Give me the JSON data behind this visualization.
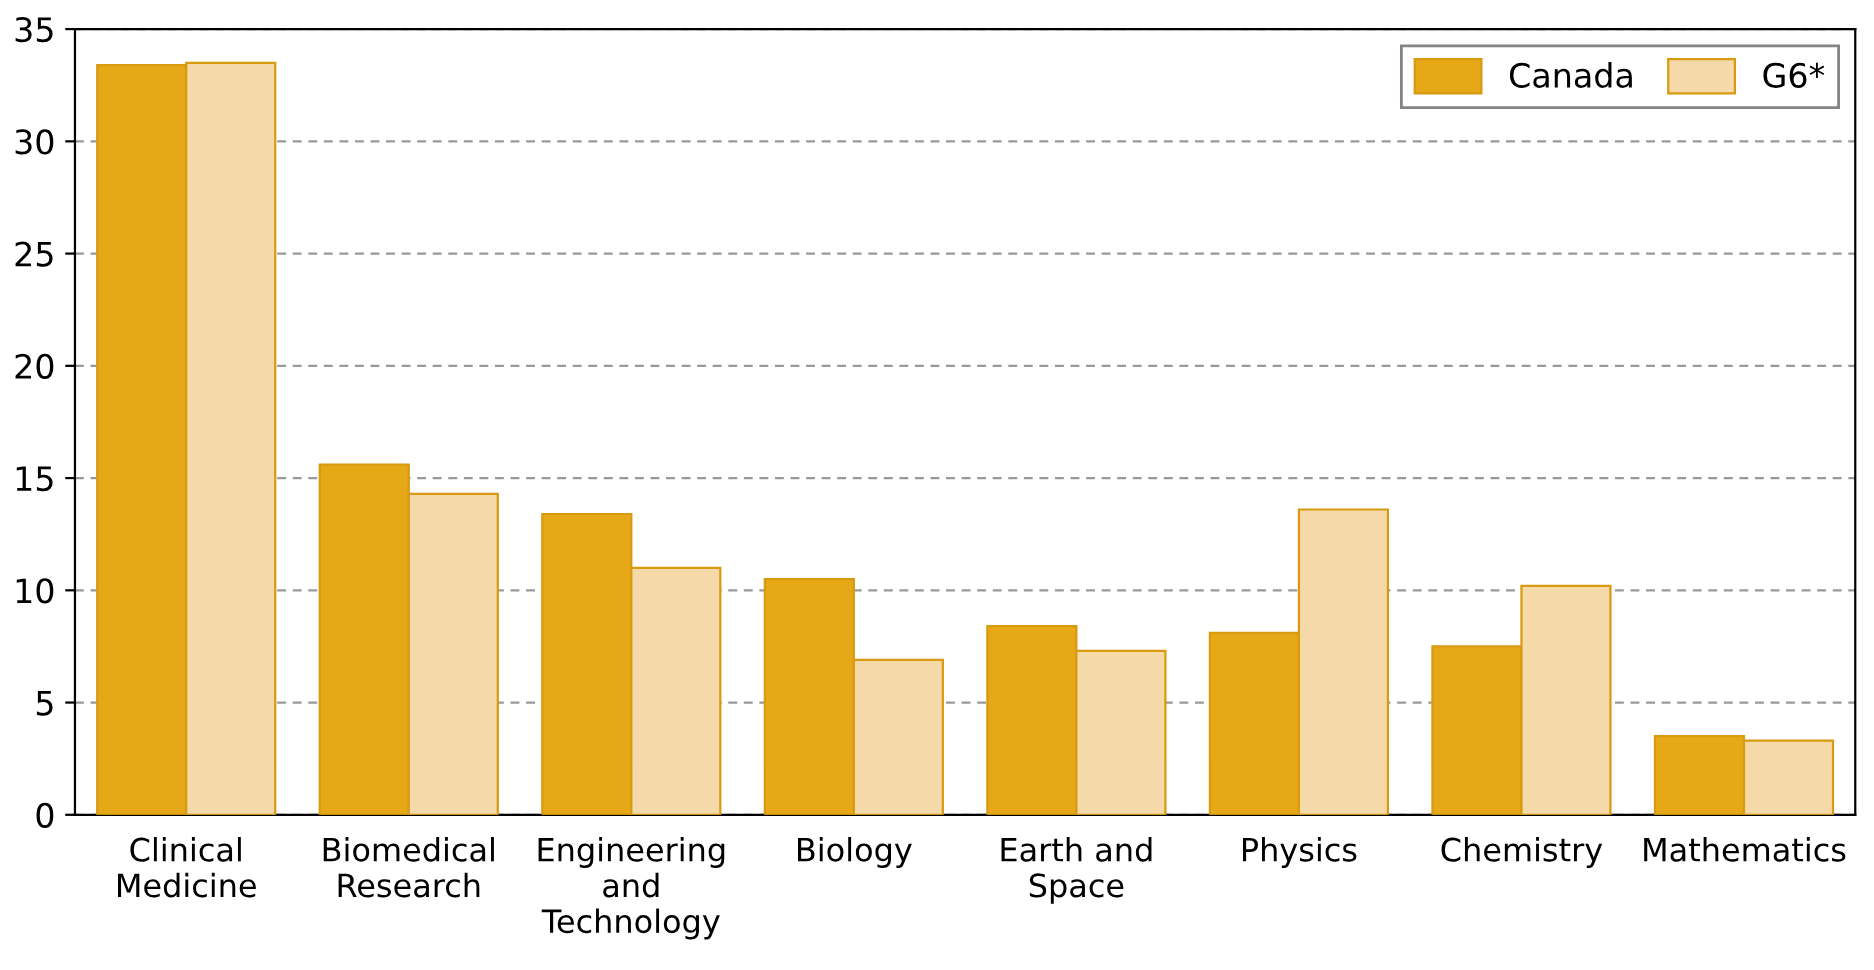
{
  "chart_data": {
    "type": "bar",
    "categories": [
      "Clinical\nMedicine",
      "Biomedical\nResearch",
      "Engineering\nand\nTechnology",
      "Biology",
      "Earth and\nSpace",
      "Physics",
      "Chemistry",
      "Mathematics"
    ],
    "series": [
      {
        "name": "Canada",
        "color": "#e6a817",
        "values": [
          33.4,
          15.6,
          13.4,
          10.5,
          8.4,
          8.1,
          7.5,
          3.5
        ]
      },
      {
        "name": "G6*",
        "color": "#f5d9a8",
        "values": [
          33.5,
          14.3,
          11.0,
          6.9,
          7.3,
          13.6,
          10.2,
          3.3
        ]
      }
    ],
    "ylim": [
      0,
      35
    ],
    "yticks": [
      0,
      5,
      10,
      15,
      20,
      25,
      30,
      35
    ],
    "grid": "y",
    "legend": "top right"
  }
}
